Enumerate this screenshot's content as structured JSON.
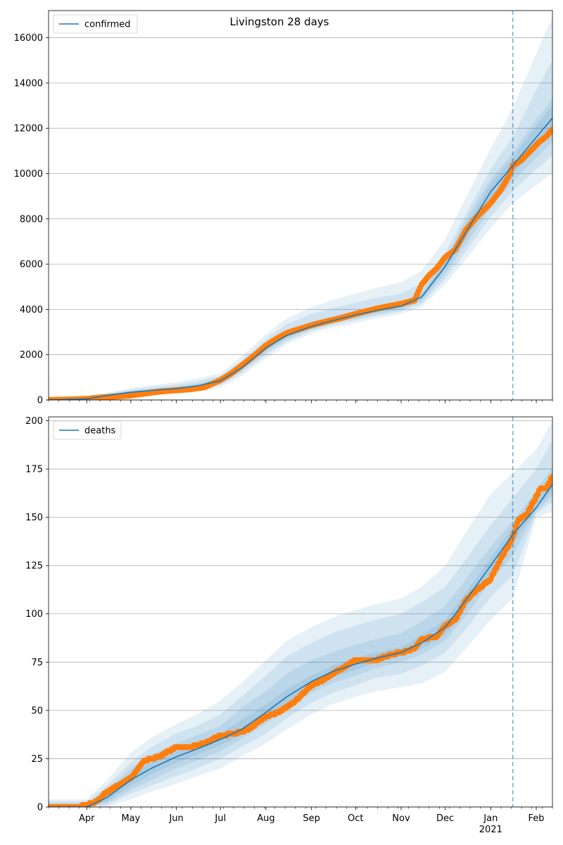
{
  "figure_title": "Livingston 28 days",
  "colors": {
    "model_line": "#1f77b4",
    "observed_points": "#ff7f0e",
    "band": "#1f77b4",
    "forecast_marker": "#1f77b4",
    "grid": "#b0b0b0"
  },
  "x_axis": {
    "start_date": "2020-03-06",
    "end_date": "2021-02-12",
    "month_ticks": [
      {
        "date": "2020-04-01",
        "label": "Apr"
      },
      {
        "date": "2020-05-01",
        "label": "May"
      },
      {
        "date": "2020-06-01",
        "label": "Jun"
      },
      {
        "date": "2020-07-01",
        "label": "Jul"
      },
      {
        "date": "2020-08-01",
        "label": "Aug"
      },
      {
        "date": "2020-09-01",
        "label": "Sep"
      },
      {
        "date": "2020-10-01",
        "label": "Oct"
      },
      {
        "date": "2020-11-01",
        "label": "Nov"
      },
      {
        "date": "2020-12-01",
        "label": "Dec"
      },
      {
        "date": "2021-01-01",
        "label": "Jan"
      },
      {
        "date": "2021-02-01",
        "label": "Feb"
      }
    ],
    "year_label": "2021"
  },
  "forecast_start_date": "2021-01-16",
  "chart_data": [
    {
      "type": "line",
      "legend": {
        "label": "confirmed",
        "position": "upper-left"
      },
      "ylim": [
        0,
        17200
      ],
      "yticks": [
        0,
        2000,
        4000,
        6000,
        8000,
        10000,
        12000,
        14000,
        16000
      ],
      "grid": "horizontal",
      "model": {
        "name": "confirmed",
        "dates": [
          "2020-03-06",
          "2020-04-01",
          "2020-04-15",
          "2020-05-01",
          "2020-05-15",
          "2020-06-01",
          "2020-06-15",
          "2020-07-01",
          "2020-07-15",
          "2020-08-01",
          "2020-08-15",
          "2020-09-01",
          "2020-09-15",
          "2020-10-01",
          "2020-10-15",
          "2020-11-01",
          "2020-11-15",
          "2020-12-01",
          "2020-12-15",
          "2021-01-01",
          "2021-01-16",
          "2021-02-01",
          "2021-02-12"
        ],
        "values": [
          0,
          50,
          200,
          340,
          420,
          500,
          620,
          850,
          1400,
          2300,
          2850,
          3250,
          3500,
          3750,
          3950,
          4150,
          4550,
          5900,
          7400,
          9200,
          10350,
          11600,
          12450
        ]
      },
      "bands": [
        {
          "lower": [
            0,
            5,
            90,
            190,
            250,
            300,
            380,
            550,
            1050,
            1850,
            2450,
            2950,
            3200,
            3400,
            3600,
            3800,
            4100,
            5100,
            6200,
            7600,
            8700,
            9500,
            10000
          ],
          "upper": [
            0,
            110,
            320,
            520,
            650,
            780,
            940,
            1180,
            1900,
            2900,
            3600,
            4100,
            4400,
            4700,
            4950,
            5200,
            5700,
            7100,
            8900,
            11100,
            12900,
            15300,
            16900
          ]
        },
        {
          "lower": [
            0,
            15,
            125,
            240,
            310,
            370,
            460,
            650,
            1170,
            2000,
            2580,
            3050,
            3300,
            3530,
            3720,
            3920,
            4250,
            5350,
            6550,
            8100,
            9250,
            10200,
            10800
          ],
          "upper": [
            0,
            90,
            280,
            460,
            570,
            680,
            820,
            1060,
            1720,
            2700,
            3350,
            3800,
            4050,
            4300,
            4500,
            4700,
            5150,
            6500,
            8200,
            10200,
            11600,
            13700,
            15000
          ]
        },
        {
          "lower": [
            0,
            25,
            150,
            270,
            345,
            415,
            520,
            720,
            1260,
            2110,
            2680,
            3130,
            3380,
            3610,
            3800,
            4000,
            4360,
            5570,
            6860,
            8500,
            9650,
            10700,
            11400
          ],
          "upper": [
            0,
            75,
            250,
            410,
            500,
            590,
            720,
            970,
            1560,
            2500,
            3060,
            3450,
            3680,
            3920,
            4120,
            4320,
            4750,
            6250,
            7950,
            9750,
            10900,
            12400,
            13300
          ]
        },
        {
          "lower": [
            0,
            35,
            170,
            300,
            380,
            455,
            570,
            780,
            1330,
            2190,
            2760,
            3190,
            3440,
            3680,
            3880,
            4080,
            4450,
            5760,
            7140,
            8850,
            10000,
            11100,
            11900
          ],
          "upper": [
            0,
            65,
            230,
            380,
            460,
            545,
            670,
            920,
            1470,
            2410,
            2940,
            3320,
            3560,
            3820,
            4020,
            4220,
            4650,
            6050,
            7660,
            9550,
            10700,
            12100,
            13000
          ]
        }
      ],
      "observed": {
        "dates": [
          "2020-03-06",
          "2020-03-20",
          "2020-04-01",
          "2020-04-10",
          "2020-04-20",
          "2020-05-01",
          "2020-05-10",
          "2020-05-20",
          "2020-06-01",
          "2020-06-10",
          "2020-06-20",
          "2020-07-01",
          "2020-07-08",
          "2020-07-15",
          "2020-07-22",
          "2020-08-01",
          "2020-08-08",
          "2020-08-15",
          "2020-08-22",
          "2020-09-01",
          "2020-09-10",
          "2020-09-20",
          "2020-10-01",
          "2020-10-10",
          "2020-10-20",
          "2020-11-01",
          "2020-11-10",
          "2020-11-15",
          "2020-11-20",
          "2020-11-25",
          "2020-12-01",
          "2020-12-08",
          "2020-12-15",
          "2020-12-22",
          "2021-01-01",
          "2021-01-08",
          "2021-01-13",
          "2021-01-16",
          "2021-01-22",
          "2021-01-28",
          "2021-02-03",
          "2021-02-08",
          "2021-02-12"
        ],
        "values": [
          0,
          20,
          50,
          110,
          150,
          200,
          280,
          370,
          430,
          470,
          560,
          880,
          1150,
          1500,
          1850,
          2400,
          2700,
          2950,
          3100,
          3300,
          3450,
          3600,
          3800,
          3950,
          4100,
          4250,
          4400,
          5100,
          5500,
          5800,
          6300,
          6650,
          7500,
          8050,
          8700,
          9300,
          9850,
          10350,
          10600,
          11000,
          11400,
          11650,
          11950
        ]
      }
    },
    {
      "type": "line",
      "legend": {
        "label": "deaths",
        "position": "upper-left"
      },
      "ylim": [
        0,
        202
      ],
      "yticks": [
        0,
        25,
        50,
        75,
        100,
        125,
        150,
        175,
        200
      ],
      "grid": "horizontal",
      "model": {
        "name": "deaths",
        "dates": [
          "2020-03-06",
          "2020-04-01",
          "2020-04-15",
          "2020-05-01",
          "2020-05-15",
          "2020-06-01",
          "2020-06-15",
          "2020-07-01",
          "2020-07-15",
          "2020-08-01",
          "2020-08-15",
          "2020-09-01",
          "2020-09-15",
          "2020-10-01",
          "2020-10-15",
          "2020-11-01",
          "2020-11-15",
          "2020-12-01",
          "2020-12-15",
          "2021-01-01",
          "2021-01-16",
          "2021-02-01",
          "2021-02-12"
        ],
        "values": [
          0,
          0,
          5,
          14,
          20,
          26,
          30,
          35,
          40,
          49,
          57,
          65,
          70,
          74,
          77,
          80,
          85,
          93,
          107,
          125,
          141,
          155,
          167
        ]
      },
      "bands": [
        {
          "lower": [
            0,
            0,
            0,
            4,
            8,
            12,
            16,
            20,
            26,
            33,
            40,
            48,
            53,
            57,
            60,
            62,
            64,
            70,
            82,
            97,
            108,
            150,
            153
          ],
          "upper": [
            4,
            4,
            14,
            28,
            36,
            43,
            48,
            55,
            64,
            76,
            86,
            93,
            98,
            102,
            105,
            108,
            114,
            125,
            142,
            162,
            173,
            185,
            200
          ]
        },
        {
          "lower": [
            0,
            0,
            1,
            7,
            11,
            16,
            20,
            25,
            31,
            38,
            46,
            54,
            59,
            63,
            67,
            69,
            73,
            80,
            92,
            109,
            120,
            152,
            158
          ],
          "upper": [
            3,
            3,
            11,
            23,
            31,
            38,
            42,
            48,
            57,
            68,
            78,
            85,
            90,
            94,
            97,
            100,
            106,
            114,
            128,
            146,
            160,
            175,
            190
          ]
        },
        {
          "lower": [
            0,
            0,
            2,
            9,
            14,
            20,
            24,
            29,
            35,
            43,
            51,
            59,
            64,
            68,
            72,
            75,
            79,
            86,
            99,
            117,
            130,
            153,
            161
          ],
          "upper": [
            2,
            2,
            9,
            20,
            27,
            33,
            37,
            42,
            51,
            60,
            69,
            76,
            80,
            84,
            87,
            90,
            96,
            104,
            118,
            135,
            148,
            164,
            176
          ]
        },
        {
          "lower": [
            0,
            0,
            3,
            11,
            17,
            23,
            27,
            32,
            37,
            46,
            54,
            62,
            67,
            71,
            75,
            78,
            82,
            89,
            103,
            121,
            136,
            154,
            164
          ],
          "upper": [
            1,
            1,
            7,
            17,
            23,
            29,
            33,
            38,
            45,
            53,
            61,
            68,
            73,
            77,
            80,
            83,
            89,
            97,
            111,
            129,
            145,
            158,
            171
          ]
        }
      ],
      "observed": {
        "dates": [
          "2020-03-06",
          "2020-03-25",
          "2020-04-01",
          "2020-04-08",
          "2020-04-15",
          "2020-04-22",
          "2020-05-01",
          "2020-05-10",
          "2020-05-20",
          "2020-06-01",
          "2020-06-10",
          "2020-06-20",
          "2020-07-01",
          "2020-07-10",
          "2020-07-20",
          "2020-08-01",
          "2020-08-10",
          "2020-08-20",
          "2020-09-01",
          "2020-09-10",
          "2020-09-20",
          "2020-10-01",
          "2020-10-15",
          "2020-10-25",
          "2020-11-01",
          "2020-11-10",
          "2020-11-15",
          "2020-11-25",
          "2020-12-01",
          "2020-12-08",
          "2020-12-15",
          "2020-12-22",
          "2021-01-01",
          "2021-01-08",
          "2021-01-13",
          "2021-01-16",
          "2021-01-20",
          "2021-01-25",
          "2021-01-30",
          "2021-02-04",
          "2021-02-08",
          "2021-02-12"
        ],
        "values": [
          0,
          0,
          1,
          3,
          8,
          11,
          15,
          24,
          26,
          31,
          31,
          33,
          37,
          38,
          40,
          47,
          49,
          54,
          63,
          66,
          71,
          76,
          76,
          79,
          80,
          82,
          87,
          88,
          94,
          97,
          107,
          112,
          118,
          129,
          135,
          140,
          149,
          151,
          158,
          165,
          165,
          171
        ]
      }
    }
  ]
}
